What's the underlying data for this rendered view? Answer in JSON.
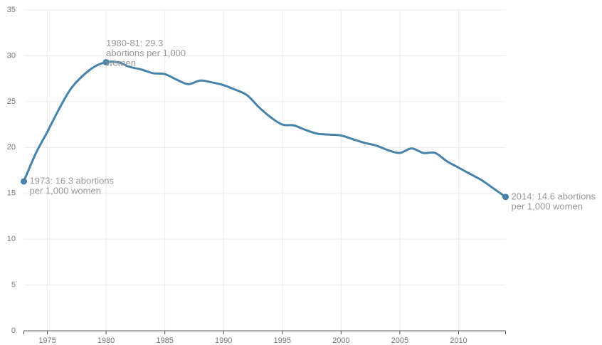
{
  "chart_data": {
    "type": "line",
    "x": [
      1973,
      1974,
      1975,
      1976,
      1977,
      1978,
      1979,
      1980,
      1981,
      1982,
      1983,
      1984,
      1985,
      1986,
      1987,
      1988,
      1989,
      1990,
      1991,
      1992,
      1993,
      1994,
      1995,
      1996,
      1997,
      1998,
      1999,
      2000,
      2001,
      2002,
      2003,
      2004,
      2005,
      2006,
      2007,
      2008,
      2009,
      2010,
      2011,
      2012,
      2013,
      2014
    ],
    "series": [
      {
        "color": "#4682a9",
        "values": [
          16.3,
          19.3,
          21.7,
          24.2,
          26.4,
          27.8,
          28.8,
          29.3,
          29.3,
          28.8,
          28.5,
          28.1,
          28.0,
          27.4,
          26.9,
          27.3,
          27.1,
          26.8,
          26.3,
          25.7,
          24.4,
          23.3,
          22.5,
          22.4,
          21.9,
          21.5,
          21.4,
          21.3,
          20.9,
          20.5,
          20.2,
          19.7,
          19.4,
          19.9,
          19.4,
          19.4,
          18.5,
          17.8,
          17.1,
          16.4,
          15.5,
          14.6
        ]
      }
    ],
    "xlim": [
      1973,
      2014
    ],
    "xticks": [
      1975,
      1980,
      1985,
      1990,
      1995,
      2000,
      2005,
      2010
    ],
    "ylim": [
      0,
      35
    ],
    "yticks": [
      0,
      5,
      10,
      15,
      20,
      25,
      30,
      35
    ],
    "grid": true,
    "annotations": [
      {
        "x": 1973,
        "y": 16.3,
        "lines": [
          "1973: 16.3 abortions",
          "per 1,000 women"
        ]
      },
      {
        "x": 1980,
        "y": 29.3,
        "lines": [
          "1980-81: 29.3",
          "abortions per 1,000",
          "women"
        ]
      },
      {
        "x": 2014,
        "y": 14.6,
        "lines": [
          "2014: 14.6 abortions",
          "per 1,000 women"
        ]
      }
    ]
  }
}
